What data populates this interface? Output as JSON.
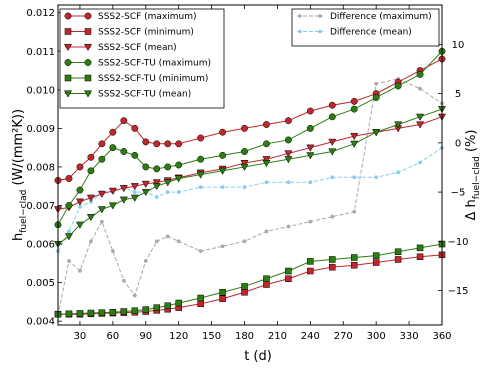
{
  "chart_data": {
    "type": "line",
    "xlabel": "t (d)",
    "ylabel_left_main": "h",
    "ylabel_left_sub": "fuel−clad",
    "ylabel_left_unit": " (W/(mm²K))",
    "ylabel_right_main": "Δ h",
    "ylabel_right_sub": "fuel−clad",
    "ylabel_right_unit": " (%)",
    "xlim": [
      10,
      360
    ],
    "ylim_left": [
      0.0039,
      0.0122
    ],
    "ylim_right": [
      -18.5,
      14
    ],
    "x_ticks": [
      30,
      60,
      90,
      120,
      150,
      180,
      210,
      240,
      270,
      300,
      330,
      360
    ],
    "y_left_ticks": [
      {
        "v": 0.004,
        "label": "0.004"
      },
      {
        "v": 0.005,
        "label": "0.005"
      },
      {
        "v": 0.006,
        "label": "0.006"
      },
      {
        "v": 0.007,
        "label": "0.007"
      },
      {
        "v": 0.008,
        "label": "0.008"
      },
      {
        "v": 0.009,
        "label": "0.009"
      },
      {
        "v": 0.01,
        "label": "0.010"
      },
      {
        "v": 0.011,
        "label": "0.011"
      },
      {
        "v": 0.012,
        "label": "0.012"
      }
    ],
    "y_right_ticks": [
      {
        "v": -15,
        "label": "−15"
      },
      {
        "v": -10,
        "label": "−10"
      },
      {
        "v": -5,
        "label": "−5"
      },
      {
        "v": 0,
        "label": "0"
      },
      {
        "v": 5,
        "label": "5"
      },
      {
        "v": 10,
        "label": "10"
      }
    ],
    "x": [
      10,
      20,
      30,
      40,
      50,
      60,
      70,
      80,
      90,
      100,
      110,
      120,
      140,
      160,
      180,
      200,
      220,
      240,
      260,
      280,
      300,
      320,
      340,
      360
    ],
    "series": [
      {
        "name": "SSS2-SCF (maximum)",
        "axis": "left",
        "marker": "circle",
        "color": "#c0272d",
        "values": [
          0.00765,
          0.0077,
          0.008,
          0.00825,
          0.0086,
          0.0089,
          0.0092,
          0.009,
          0.00865,
          0.0086,
          0.0086,
          0.0086,
          0.00875,
          0.0089,
          0.009,
          0.0091,
          0.0092,
          0.00945,
          0.0096,
          0.0097,
          0.0099,
          0.0102,
          0.0105,
          0.0108
        ]
      },
      {
        "name": "SSS2-SCF (minimum)",
        "axis": "left",
        "marker": "square",
        "color": "#c0272d",
        "values": [
          0.00418,
          0.00418,
          0.00418,
          0.00419,
          0.0042,
          0.00421,
          0.00422,
          0.00423,
          0.00425,
          0.00428,
          0.00431,
          0.00435,
          0.00445,
          0.00458,
          0.00475,
          0.00495,
          0.0051,
          0.0053,
          0.0054,
          0.00545,
          0.00552,
          0.0056,
          0.00567,
          0.00572
        ]
      },
      {
        "name": "SSS2-SCF (mean)",
        "axis": "left",
        "marker": "triangle-down",
        "color": "#c0272d",
        "values": [
          0.0069,
          0.00695,
          0.0071,
          0.0072,
          0.0073,
          0.00738,
          0.00745,
          0.0075,
          0.00756,
          0.0076,
          0.00765,
          0.00772,
          0.00785,
          0.00795,
          0.0081,
          0.0082,
          0.00835,
          0.0085,
          0.00865,
          0.0088,
          0.0089,
          0.009,
          0.0091,
          0.0093
        ]
      },
      {
        "name": "SSS2-SCF-TU (maximum)",
        "axis": "left",
        "marker": "circle",
        "color": "#2e7d12",
        "values": [
          0.0065,
          0.007,
          0.0074,
          0.0079,
          0.0082,
          0.0085,
          0.0084,
          0.0083,
          0.008,
          0.00795,
          0.008,
          0.00805,
          0.0082,
          0.0083,
          0.0084,
          0.0086,
          0.0087,
          0.009,
          0.0093,
          0.0095,
          0.0098,
          0.0101,
          0.0104,
          0.011
        ]
      },
      {
        "name": "SSS2-SCF-TU (minimum)",
        "axis": "left",
        "marker": "square",
        "color": "#2e7d12",
        "values": [
          0.00418,
          0.00419,
          0.0042,
          0.00421,
          0.00422,
          0.00423,
          0.00425,
          0.00427,
          0.0043,
          0.00435,
          0.0044,
          0.00447,
          0.0046,
          0.00475,
          0.0049,
          0.0051,
          0.0053,
          0.00555,
          0.0056,
          0.00565,
          0.0057,
          0.0058,
          0.0059,
          0.006
        ]
      },
      {
        "name": "SSS2-SCF-TU (mean)",
        "axis": "left",
        "marker": "triangle-down",
        "color": "#2e7d12",
        "values": [
          0.006,
          0.0062,
          0.0065,
          0.0067,
          0.0069,
          0.007,
          0.00715,
          0.0072,
          0.00735,
          0.0075,
          0.0076,
          0.0077,
          0.0078,
          0.0079,
          0.008,
          0.0081,
          0.0082,
          0.0083,
          0.0084,
          0.0086,
          0.0089,
          0.0091,
          0.0093,
          0.0095
        ]
      },
      {
        "name": "Difference (maximum)",
        "axis": "right",
        "marker": "dot",
        "dashed": true,
        "color": "#aaaaaa",
        "values": [
          -17.5,
          -12,
          -13,
          -10,
          -8,
          -11,
          -14,
          -15.5,
          -12,
          -10,
          -9.5,
          -10,
          -11,
          -10.5,
          -10,
          -9,
          -8.5,
          -8,
          -7.5,
          -7,
          6,
          6.5,
          5.5,
          4
        ]
      },
      {
        "name": "Difference (mean)",
        "axis": "right",
        "marker": "dot",
        "dashed": true,
        "color": "#87ceeb",
        "values": [
          -11,
          -9,
          -6.5,
          -6,
          -5,
          -5,
          -4.5,
          -5,
          -5,
          -5.5,
          -5,
          -5,
          -4.5,
          -4.5,
          -4.5,
          -4,
          -4,
          -4,
          -3.5,
          -3.5,
          -3.5,
          -3,
          -2,
          -0.5
        ]
      }
    ],
    "legend_left_position": "upper-left",
    "legend_right_position": "upper-right",
    "grid": false
  }
}
